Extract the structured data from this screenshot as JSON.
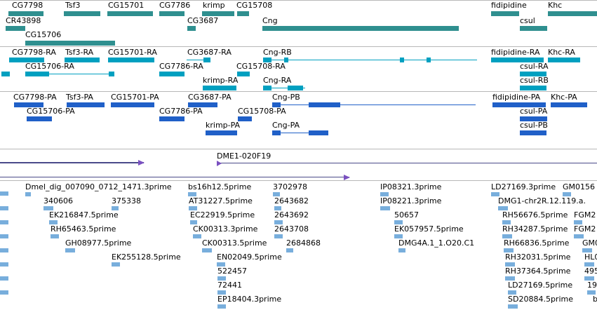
{
  "colors": {
    "gene": "#2f8f8f",
    "transcript": "#00a0c0",
    "protein": "#2060c8",
    "est": "#78aedc",
    "clone": "#4a4a8a",
    "clone_end": "#7a50c0",
    "separator": "#b8b8b8"
  },
  "genes": {
    "CG7798": "CG7798",
    "Tsf3": "Tsf3",
    "CG15701": "CG15701",
    "CG7786": "CG7786",
    "krimp": "krimp",
    "CG15708": "CG15708",
    "fidipidine": "fidipidine",
    "Khc": "Khc",
    "CR43898": "CR43898",
    "CG3687": "CG3687",
    "Cng": "Cng",
    "csul": "csul",
    "CG15706": "CG15706"
  },
  "transcripts": {
    "CG7798_RA": "CG7798-RA",
    "Tsf3_RA": "Tsf3-RA",
    "CG15701_RA": "CG15701-RA",
    "CG3687_RA": "CG3687-RA",
    "Cng_RB": "Cng-RB",
    "fidipidine_RA": "fidipidine-RA",
    "Khc_RA": "Khc-RA",
    "CG15706_RA": "CG15706-RA",
    "CG7786_RA": "CG7786-RA",
    "CG15708_RA": "CG15708-RA",
    "csul_RA": "csul-RA",
    "krimp_RA": "krimp-RA",
    "Cng_RA": "Cng-RA",
    "csul_RB": "csul-RB"
  },
  "proteins": {
    "CG7798_PA": "CG7798-PA",
    "Tsf3_PA": "Tsf3-PA",
    "CG15701_PA": "CG15701-PA",
    "CG3687_PA": "CG3687-PA",
    "Cng_PB": "Cng-PB",
    "fidipidine_PA": "fidipidine-PA",
    "Khc_PA": "Khc-PA",
    "CG15706_PA": "CG15706-PA",
    "CG7786_PA": "CG7786-PA",
    "CG15708_PA": "CG15708-PA",
    "csul_PA": "csul-PA",
    "krimp_PA": "krimp-PA",
    "Cng_PA": "Cng-PA",
    "csul_PB": "csul-PB"
  },
  "clones": {
    "DME1_020F19": "DME1-020F19"
  },
  "ests": {
    "e1": "Dmel_dig_007090_0712_1471.3prime",
    "e2": "bs16h12.5prime",
    "e3": "3702978",
    "e4": "IP08321.3prime",
    "e5": "LD27169.3prime",
    "e6": "GM0156",
    "e7": "340606",
    "e8": "375338",
    "e9": "AT31227.5prime",
    "e10": "2643682",
    "e11": "IP08221.3prime",
    "e12": "DMG1-chr2R.12.119.a.",
    "e13": "EK216847.5prime",
    "e14": "EC22919.5prime",
    "e15": "2643692",
    "e16": "50657",
    "e17": "RH56676.5prime",
    "e18": "FGM2",
    "e19": "RH65463.5prime",
    "e20": "CK00313.3prime",
    "e21": "2643708",
    "e22": "EK057957.5prime",
    "e23": "RH34287.5prime",
    "e24": "FGM2",
    "e25": "GH08977.5prime",
    "e26": "CK00313.5prime",
    "e27": "2684868",
    "e28": "DMG4A.1_1.O20.C1",
    "e29": "RH66836.5prime",
    "e30": "GM0",
    "e31": "EK255128.5prime",
    "e32": "EN02049.5prime",
    "e33": "RH32031.5prime",
    "e34": "HL0",
    "e35": "522457",
    "e36": "RH37364.5prime",
    "e37": "495",
    "e38": "72441",
    "e39": "LD27169.5prime",
    "e40": "19",
    "e41": "EP18404.3prime",
    "e42": "SD20884.5prime",
    "e43": "b"
  }
}
